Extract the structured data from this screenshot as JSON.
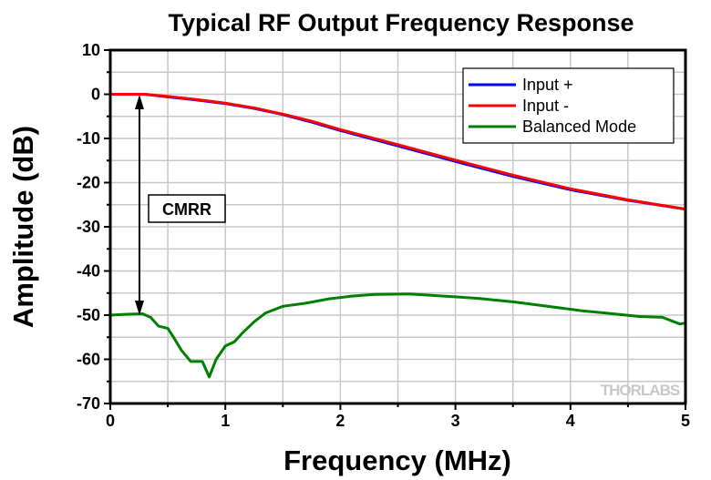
{
  "chart_data": {
    "type": "line",
    "title": "Typical RF Output Frequency Response",
    "xlabel": "Frequency (MHz)",
    "ylabel": "Amplitude (dB)",
    "xlim": [
      0,
      5
    ],
    "ylim": [
      -70,
      10
    ],
    "xticks": [
      "0",
      "1",
      "2",
      "3",
      "4",
      "5"
    ],
    "yticks": [
      "10",
      "0",
      "-10",
      "-20",
      "-30",
      "-40",
      "-50",
      "-60",
      "-70"
    ],
    "grid": true,
    "legend_position": "top-right",
    "annotation": "CMRR",
    "watermark": "THORLABS",
    "series": [
      {
        "name": "Input +",
        "color": "#0000ff",
        "x": [
          0,
          0.3,
          0.5,
          0.75,
          1,
          1.25,
          1.5,
          1.75,
          2,
          2.5,
          3,
          3.5,
          4,
          4.5,
          5
        ],
        "y": [
          0,
          0,
          -0.6,
          -1.3,
          -2.1,
          -3.2,
          -4.6,
          -6.3,
          -8.2,
          -11.7,
          -15.2,
          -18.6,
          -21.6,
          -24,
          -26
        ]
      },
      {
        "name": "Input -",
        "color": "#ff0000",
        "x": [
          0,
          0.3,
          0.5,
          0.75,
          1,
          1.25,
          1.5,
          1.75,
          2,
          2.5,
          3,
          3.5,
          4,
          4.5,
          5
        ],
        "y": [
          0,
          0,
          -0.5,
          -1.2,
          -2,
          -3.1,
          -4.5,
          -6.1,
          -8,
          -11.4,
          -14.9,
          -18.3,
          -21.4,
          -23.9,
          -26
        ]
      },
      {
        "name": "Balanced Mode",
        "color": "#008000",
        "x": [
          0,
          0.15,
          0.28,
          0.35,
          0.42,
          0.5,
          0.55,
          0.62,
          0.7,
          0.75,
          0.8,
          0.86,
          0.92,
          1.0,
          1.08,
          1.15,
          1.25,
          1.35,
          1.5,
          1.7,
          1.9,
          2.1,
          2.3,
          2.6,
          2.9,
          3.2,
          3.5,
          3.8,
          4.1,
          4.3,
          4.6,
          4.8,
          4.9,
          4.95,
          5
        ],
        "y": [
          -50,
          -49.8,
          -49.7,
          -50.5,
          -52.5,
          -53,
          -55,
          -58,
          -60.5,
          -60.5,
          -60.5,
          -64,
          -60,
          -57,
          -56,
          -54,
          -51.5,
          -49.5,
          -48,
          -47.3,
          -46.3,
          -45.7,
          -45.3,
          -45.2,
          -45.7,
          -46.2,
          -47,
          -48,
          -49,
          -49.5,
          -50.3,
          -50.5,
          -51.5,
          -52,
          -51.8
        ]
      }
    ]
  }
}
